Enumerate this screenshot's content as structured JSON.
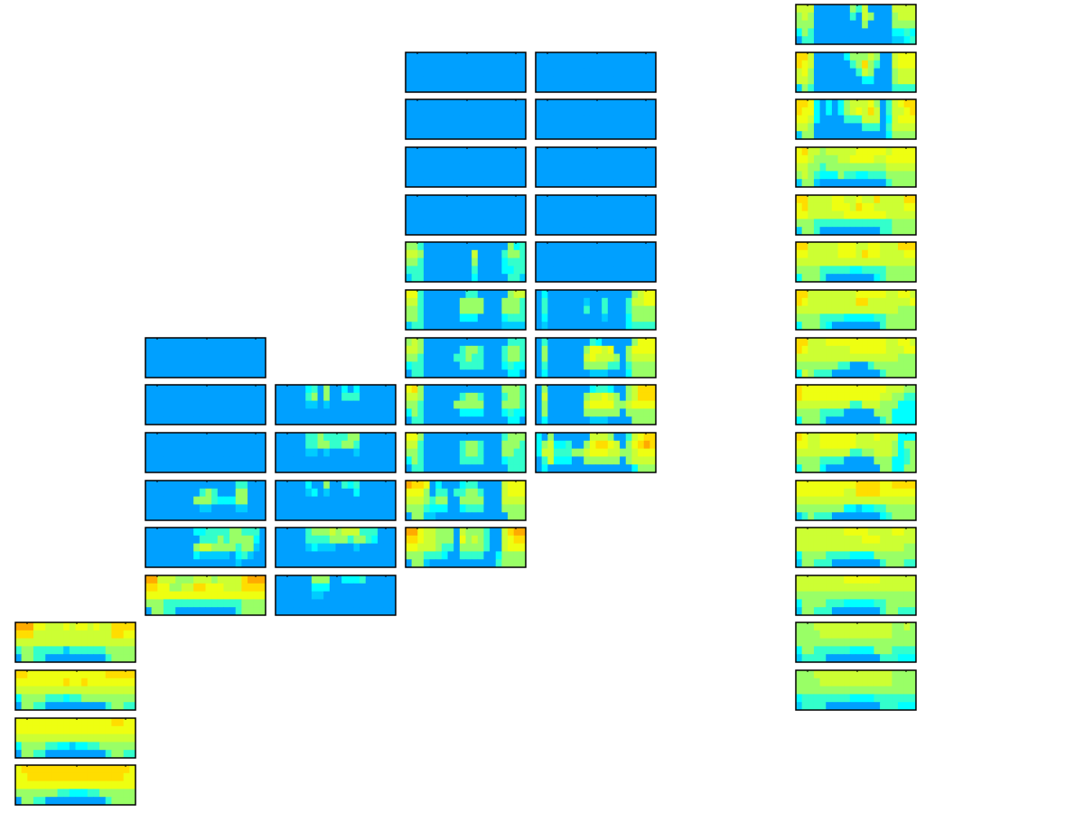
{
  "chart_data": {
    "type": "heatmap",
    "colormap": [
      "#00a0ff",
      "#00ccff",
      "#00ffff",
      "#33ffcc",
      "#99ff66",
      "#ccff33",
      "#eeff11",
      "#ffdd00",
      "#ffaa00"
    ],
    "grid": false,
    "columns": [
      {
        "panels": [
          {
            "grid": [
              "88866555656656557777",
              "77755555555555557766",
              "55555555555555555555",
              "34433333133333344444",
              "04433000000000034444"
            ]
          },
          {
            "grid": [
              "77666666666666677777",
              "66666666766766666666",
              "55555555555555555555",
              "24444333233444444444",
              "04433000000000034433"
            ]
          },
          {
            "grid": [
              "66666666666666667766",
              "66666666666666666666",
              "55555555555555555555",
              "24444332212233444444",
              "04433000000000034433"
            ]
          },
          {
            "grid": [
              "67777777777777777776",
              "66777777777777777766",
              "66666666666666666666",
              "44444443322233444444",
              "04433000000000034444"
            ]
          }
        ]
      },
      {
        "panels": [
          {
            "grid": [
              "00000000000000000000",
              "00000000000000000000",
              "00000000000000000000",
              "00000000000000000000",
              "00000000000000000000"
            ]
          },
          {
            "grid": [
              "00000000000000000000",
              "00000000000000000000",
              "00000000000000000000",
              "00000000000000000000",
              "00000000000000000000"
            ]
          },
          {
            "grid": [
              "00000000000000000000",
              "00000000000000000000",
              "00000000000000000000",
              "00000000000000000000",
              "00000000000000000000"
            ]
          },
          {
            "grid": [
              "00000000000000033000",
              "00000000034300044000",
              "00000000444322244000",
              "00000000011000011000",
              "00000000000000000000"
            ]
          },
          {
            "grid": [
              "00000000223333443330",
              "00000000033343444420",
              "00000000455444434410",
              "00000000211111023100",
              "00000000000000010000"
            ]
          },
          {
            "grid": [
              "88555444555455557888",
              "77664455776665557777",
              "66666666666666666666",
              "44433333333333334444",
              "04433000000000034444"
            ]
          }
        ]
      },
      {
        "panels": [
          {
            "grid": [
              "00000230400202000000",
              "00000340400333000000",
              "00000110100000000000",
              "00000000000000000000",
              "00000000000000000000"
            ]
          },
          {
            "grid": [
              "00000334333344000000",
              "00000334433443000000",
              "00000110100001000000",
              "00000000000000000000",
              "00000000000000000000"
            ]
          },
          {
            "grid": [
              "00000200400323000000",
              "00000120100002000000",
              "00000000000000000000",
              "00000000000000000000",
              "00000000000000000000"
            ]
          },
          {
            "grid": [
              "00000344454555333000",
              "00000333344434432000",
              "00000121110001000000",
              "00000000000000000000",
              "00000000000000000000"
            ]
          },
          {
            "grid": [
              "00000044400222300000",
              "00000022200000000000",
              "00000011000000000000",
              "00000000000000000000",
              "00000000000000000000"
            ]
          }
        ]
      },
      {
        "panels": [
          {
            "grid": [
              "00000000000000000000",
              "00000000000000000000",
              "00000000000000000000",
              "00000000000000000000",
              "00000000000000000000"
            ]
          },
          {
            "grid": [
              "00000000000000000000",
              "00000000000000000000",
              "00000000000000000000",
              "00000000000000000000",
              "00000000000000000000"
            ]
          },
          {
            "grid": [
              "00000000000000000000",
              "00000000000000000000",
              "00000000000000000000",
              "00000000000000000000",
              "00000000000000000000"
            ]
          },
          {
            "grid": [
              "00000000000000000000",
              "00000000000000000000",
              "00000000000000000000",
              "00000000000000000000",
              "00000000000000000000"
            ]
          },
          {
            "grid": [
              "44300000000000000423",
              "55400000000500003443",
              "44300000000400002333",
              "33300000000300002233",
              "13300000000200000331"
            ]
          },
          {
            "grid": [
              "66300000003300000455",
              "55300000044440004443",
              "44300000044440004443",
              "44300000022200002333",
              "13300000000000001111"
            ]
          },
          {
            "grid": [
              "45400000000000000333",
              "55400000034430003443",
              "44300000334330003443",
              "23300000033330002322",
              "03300000000000000220"
            ]
          },
          {
            "grid": [
              "67400000000000004443",
              "55400000034430003443",
              "44300000444440004443",
              "24300000022220002322",
              "03300000000000000220"
            ]
          },
          {
            "grid": [
              "66400000000000003444",
              "55300000034430004443",
              "44300000034430004433",
              "24300000033330002333",
              "03300000000000000333"
            ]
          },
          {
            "grid": [
              "87760200023300005666",
              "66640330334430005666",
              "55543440044440005555",
              "44432220023330004444",
              "04411000000000000444"
            ]
          },
          {
            "grid": [
              "88655444054443005788",
              "77655444064543005677",
              "66555433044443005666",
              "44433320033330024444",
              "04410000000000034444"
            ]
          }
        ]
      },
      {
        "panels": [
          {
            "grid": [
              "00000000000000000000",
              "00000000000000000000",
              "00000000000000000000",
              "00000000000000000000",
              "00000000000000000000"
            ]
          },
          {
            "grid": [
              "00000000000000000000",
              "00000000000000000000",
              "00000000000000000000",
              "00000000000000000000",
              "00000000000000000000"
            ]
          },
          {
            "grid": [
              "00000000000000000000",
              "00000000000000000000",
              "00000000000000000000",
              "00000000000000000000",
              "00000000000000000000"
            ]
          },
          {
            "grid": [
              "00000000000000000000",
              "00000000000000000000",
              "00000000000000000000",
              "00000000000000000000",
              "00000000000000000000"
            ]
          },
          {
            "grid": [
              "00000000000000000000",
              "00000000000000000000",
              "00000000000000000000",
              "00000000000000000000",
              "00000000000000000000"
            ]
          },
          {
            "grid": [
              "02000000000000004566",
              "03000000100300035566",
              "03000000300300034444",
              "02000000000100024444",
              "01000000000000023333"
            ]
          },
          {
            "grid": [
              "03000000032000004666",
              "04000000466560046666",
              "04000000565554045555",
              "03000000444433034444",
              "02000000011100024444"
            ]
          },
          {
            "grid": [
              "04000000023320045777",
              "05000000455654045777",
              "04000000566664456666",
              "04000000444444044444",
              "02000000011100004444"
            ]
          },
          {
            "grid": [
              "20400000055540035677",
              "24522300467765046787",
              "25533344566655445666",
              "03522200444444045555",
              "02000000000000002444"
            ]
          }
        ]
      },
      {
        "panels": [
          {
            "grid": [
              "55500000043500005555",
              "45400000030540004555",
              "44400000000400004444",
              "24300000000000002232",
              "03300000000000001123"
            ]
          },
          {
            "grid": [
              "77500000244454005666",
              "76500000034743005666",
              "56400000003540004555",
              "55400000000220004555",
              "14300000000000003333"
            ]
          },
          {
            "grid": [
              "77620202455564035677",
              "76620202456575035567",
              "66520000333555025666",
              "55400000000333035555",
              "14400000000000024444"
            ]
          },
          {
            "grid": [
              "67554555556666656666",
              "66544445566665566666",
              "55443444444444455555",
              "45432224332233344444",
              "14410000000000034444"
            ]
          },
          {
            "grid": [
              "77555566556557555577",
              "67555566657665555566",
              "66555555666666655555",
              "44433333333333334444",
              "14430000000000334444"
            ]
          },
          {
            "grid": [
              "77555556665566555777",
              "66555556665766555566",
              "55555555555555555555",
              "44443333322333344444",
              "24443000000002344444"
            ]
          },
          {
            "grid": [
              "77555555556666655665",
              "76555555557755555556",
              "55555555555555555444",
              "44443333222223344444",
              "24443200000000344444"
            ]
          },
          {
            "grid": [
              "77555666666666655665",
              "76555555566666655566",
              "55555555555555555444",
              "44444443300034444444",
              "25433300000000344444"
            ]
          },
          {
            "grid": [
              "76666666666666655544",
              "76666666666666554433",
              "55555555533555444222",
              "44443333000004442222",
              "24443000000000342222"
            ]
          },
          {
            "grid": [
              "76556666665556555222",
              "66556666665555554244",
              "55555555533445554234",
              "44443333000004442234",
              "24442000000000442244"
            ]
          },
          {
            "grid": [
              "66666666667777667777",
              "66666666557777666666",
              "55555555555555555555",
              "44444444221223344444",
              "13433300000000234444"
            ]
          },
          {
            "grid": [
              "55555555666655556655",
              "55555555555666555555",
              "55555555555555555544",
              "24444333322224444444",
              "14433300000000344433"
            ]
          },
          {
            "grid": [
              "55555555666666555555",
              "55555555555555555555",
              "44444444444444444444",
              "24444333222223344444",
              "14433300000000344333"
            ]
          },
          {
            "grid": [
              "44455555555555554454",
              "44445555555555554444",
              "44444444444444444444",
              "24433333322224443333",
              "13333000000000333222"
            ]
          },
          {
            "grid": [
              "44455555555555554444",
              "44445555555555554444",
              "44444444444444444444",
              "23333333322223333333",
              "13333000000000333222"
            ]
          }
        ]
      }
    ]
  }
}
